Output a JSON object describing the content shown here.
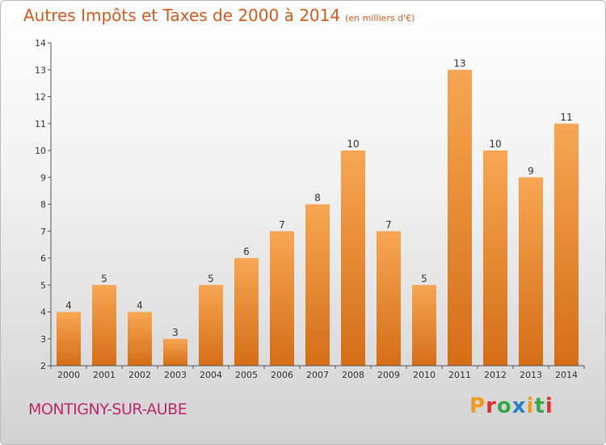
{
  "title": "Autres Impôts et Taxes de 2000 à 2014",
  "title_unit": "(en milliers d'€)",
  "commune": "MONTIGNY-SUR-AUBE",
  "logo": {
    "text": "Proxiti",
    "colors": [
      "#f29a1f",
      "#e3312d",
      "#3aa64a",
      "#2a7fc9",
      "#f29a1f",
      "#3aa64a",
      "#e3312d"
    ]
  },
  "colors": {
    "bar_top": "#f7a653",
    "bar_bottom": "#d46e16",
    "title": "#db5a1e",
    "commune": "#c02a6a"
  },
  "chart_data": {
    "type": "bar",
    "title": "Autres Impôts et Taxes de 2000 à 2014",
    "ylabel": "",
    "xlabel": "",
    "categories": [
      "2000",
      "2001",
      "2002",
      "2003",
      "2004",
      "2005",
      "2006",
      "2007",
      "2008",
      "2009",
      "2010",
      "2011",
      "2012",
      "2013",
      "2014"
    ],
    "values": [
      4,
      5,
      4,
      3,
      5,
      6,
      7,
      8,
      10,
      7,
      5,
      13,
      10,
      9,
      11
    ],
    "ylim": [
      2,
      14
    ],
    "yticks": [
      2,
      3,
      4,
      5,
      6,
      7,
      8,
      9,
      10,
      11,
      12,
      13,
      14
    ],
    "grid": false
  }
}
